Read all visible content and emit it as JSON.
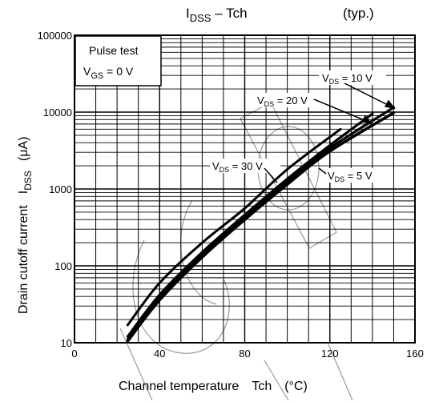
{
  "chart_data": {
    "type": "line",
    "title": {
      "main": "I",
      "sub": "DSS",
      "rest": " – Tch"
    },
    "title_note": "(typ.)",
    "xlabel": {
      "text": "Channel temperature",
      "symbol": "Tch",
      "unit": "(°C)"
    },
    "ylabel": {
      "text": "Drain cutoff current",
      "symbol_main": "I",
      "symbol_sub": "DSS",
      "unit": "(μA)"
    },
    "x_scale": "linear",
    "y_scale": "log",
    "xlim": [
      0,
      160
    ],
    "ylim": [
      10,
      100000
    ],
    "x_ticks": [
      {
        "value": 0,
        "label": "0"
      },
      {
        "value": 40,
        "label": "40"
      },
      {
        "value": 80,
        "label": "80"
      },
      {
        "value": 120,
        "label": "120"
      },
      {
        "value": 160,
        "label": "160"
      }
    ],
    "y_ticks": [
      {
        "value": 10,
        "label": "10"
      },
      {
        "value": 100,
        "label": "100"
      },
      {
        "value": 1000,
        "label": "1000"
      },
      {
        "value": 10000,
        "label": "10000"
      },
      {
        "value": 100000,
        "label": "100000"
      }
    ],
    "grid": true,
    "conditions": {
      "line1": "Pulse test",
      "line2_main": "V",
      "line2_sub": "GS",
      "line2_rest": " = 0 V"
    },
    "series": [
      {
        "name_main": "V",
        "name_sub": "DS",
        "name_rest": " = 30 V",
        "x": [
          25,
          40,
          60,
          80,
          100,
          125
        ],
        "y": [
          17,
          60,
          200,
          560,
          1800,
          6000
        ]
      },
      {
        "name_main": "V",
        "name_sub": "DS",
        "name_rest": " = 20 V",
        "x": [
          25,
          40,
          60,
          80,
          100,
          120,
          140
        ],
        "y": [
          12,
          42,
          150,
          460,
          1350,
          3700,
          9500
        ]
      },
      {
        "name_main": "V",
        "name_sub": "DS",
        "name_rest": " = 10 V",
        "x": [
          25,
          40,
          60,
          80,
          100,
          120,
          150
        ],
        "y": [
          11,
          38,
          140,
          430,
          1250,
          3400,
          11500
        ]
      },
      {
        "name_main": "V",
        "name_sub": "DS",
        "name_rest": " = 5 V",
        "x": [
          25,
          40,
          60,
          80,
          100,
          120,
          150
        ],
        "y": [
          10.5,
          36,
          130,
          400,
          1150,
          3100,
          9800
        ]
      }
    ],
    "colors": {
      "line": "#000000",
      "grid": "#000000",
      "watermark": "#9a9a9a"
    }
  }
}
